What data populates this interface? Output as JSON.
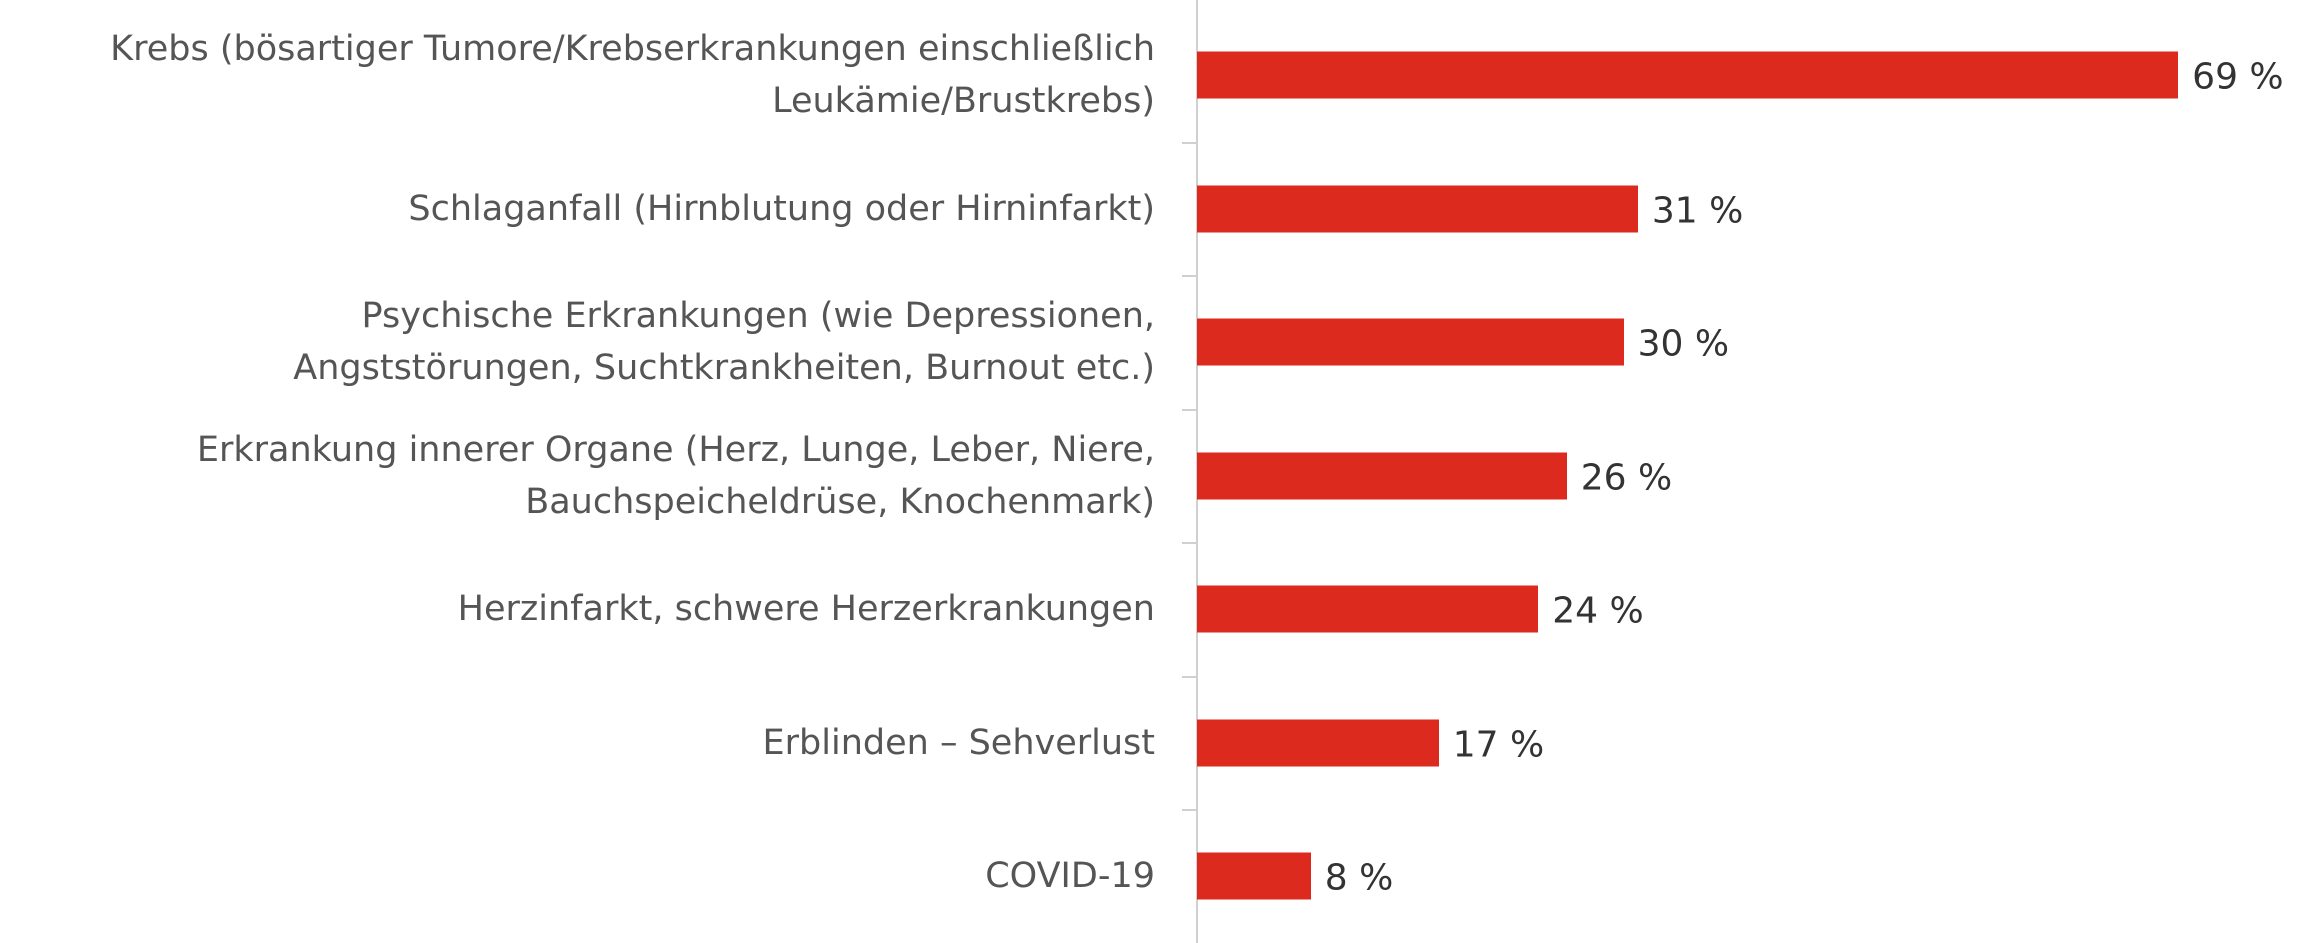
{
  "chart_data": {
    "type": "bar",
    "orientation": "horizontal",
    "categories": [
      "Krebs (bösartiger Tumore/Krebserkrankungen einschließlich\nLeukämie/Brustkrebs)",
      "Schlaganfall (Hirnblutung oder Hirninfarkt)",
      "Psychische Erkrankungen (wie Depressionen,\nAngststörungen, Suchtkrankheiten, Burnout etc.)",
      "Erkrankung innerer Organe (Herz, Lunge, Leber, Niere,\nBauchspeicheldrüse, Knochenmark)",
      "Herzinfarkt, schwere Herzerkrankungen",
      "Erblinden – Sehverlust",
      "COVID-19"
    ],
    "values": [
      69,
      31,
      30,
      26,
      24,
      17,
      8
    ],
    "value_labels": [
      "69 %",
      "31 %",
      "30 %",
      "26 %",
      "24 %",
      "17 %",
      "8 %"
    ],
    "color": "#dc2a1f"
  }
}
